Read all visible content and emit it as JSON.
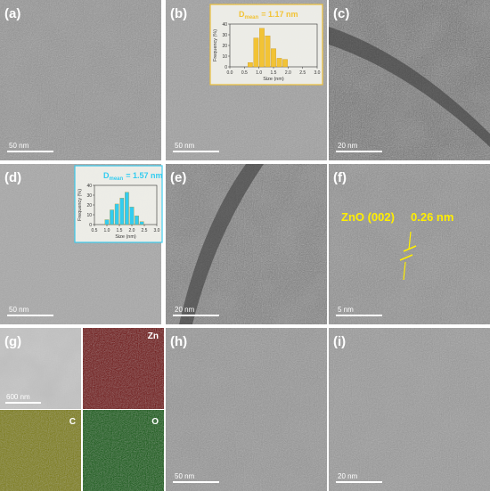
{
  "panels": [
    {
      "label": "(a)",
      "scale_bar": "50 nm"
    },
    {
      "label": "(b)",
      "scale_bar": "50 nm",
      "inset": {
        "type": "bar",
        "title": {
          "symbol": "D",
          "subscript": "mean",
          "text": "= 1.17 nm"
        },
        "xlabel": "Size (nm)",
        "ylabel": "Frequency (%)",
        "color": "#f2c335",
        "bins": [
          0.6,
          0.8,
          1.0,
          1.2,
          1.4,
          1.6,
          1.8,
          2.0
        ],
        "values": [
          4,
          27,
          36,
          29,
          17,
          8,
          7
        ],
        "xlim": [
          0,
          3
        ],
        "ylim": [
          0,
          40
        ],
        "xticks": [
          {
            "value": 0,
            "label": "0.0"
          },
          0.5,
          {
            "value": 1,
            "label": "1.0"
          },
          1.5,
          {
            "value": 2,
            "label": "2.0"
          },
          2.5,
          {
            "value": 3,
            "label": "3.0"
          }
        ],
        "yticks": [
          0,
          10,
          20,
          30,
          40
        ]
      }
    },
    {
      "label": "(c)",
      "scale_bar": "20 nm"
    },
    {
      "label": "(d)",
      "scale_bar": "50 nm",
      "inset": {
        "type": "bar",
        "title": {
          "symbol": "D",
          "subscript": "mean",
          "text": "= 1.57 nm"
        },
        "xlabel": "Size (nm)",
        "ylabel": "Frequency (%)",
        "color": "#33ccf0",
        "bins": [
          0.9,
          1.1,
          1.3,
          1.5,
          1.7,
          1.9,
          2.1,
          2.3,
          2.5
        ],
        "values": [
          5,
          15,
          21,
          27,
          33,
          18,
          9,
          3
        ],
        "xlim": [
          0.5,
          3
        ],
        "ylim": [
          0,
          40
        ],
        "xticks": [
          0.5,
          {
            "value": 1,
            "label": "1.0"
          },
          1.5,
          {
            "value": 2,
            "label": "2.0"
          },
          2.5,
          {
            "value": 3,
            "label": "3.0"
          }
        ],
        "yticks": [
          0,
          10,
          20,
          30,
          40
        ]
      }
    },
    {
      "label": "(e)",
      "scale_bar": "20 nm"
    },
    {
      "label": "(f)",
      "scale_bar": "5 nm",
      "annotation": {
        "phase": "ZnO (002)",
        "spacing": "0.26 nm"
      }
    },
    {
      "label": "(g)",
      "scale_bar": "600 nm",
      "maps": [
        "Zn",
        "C",
        "O"
      ]
    },
    {
      "label": "(h)",
      "scale_bar": "50 nm"
    },
    {
      "label": "(i)",
      "scale_bar": "20 nm"
    }
  ]
}
